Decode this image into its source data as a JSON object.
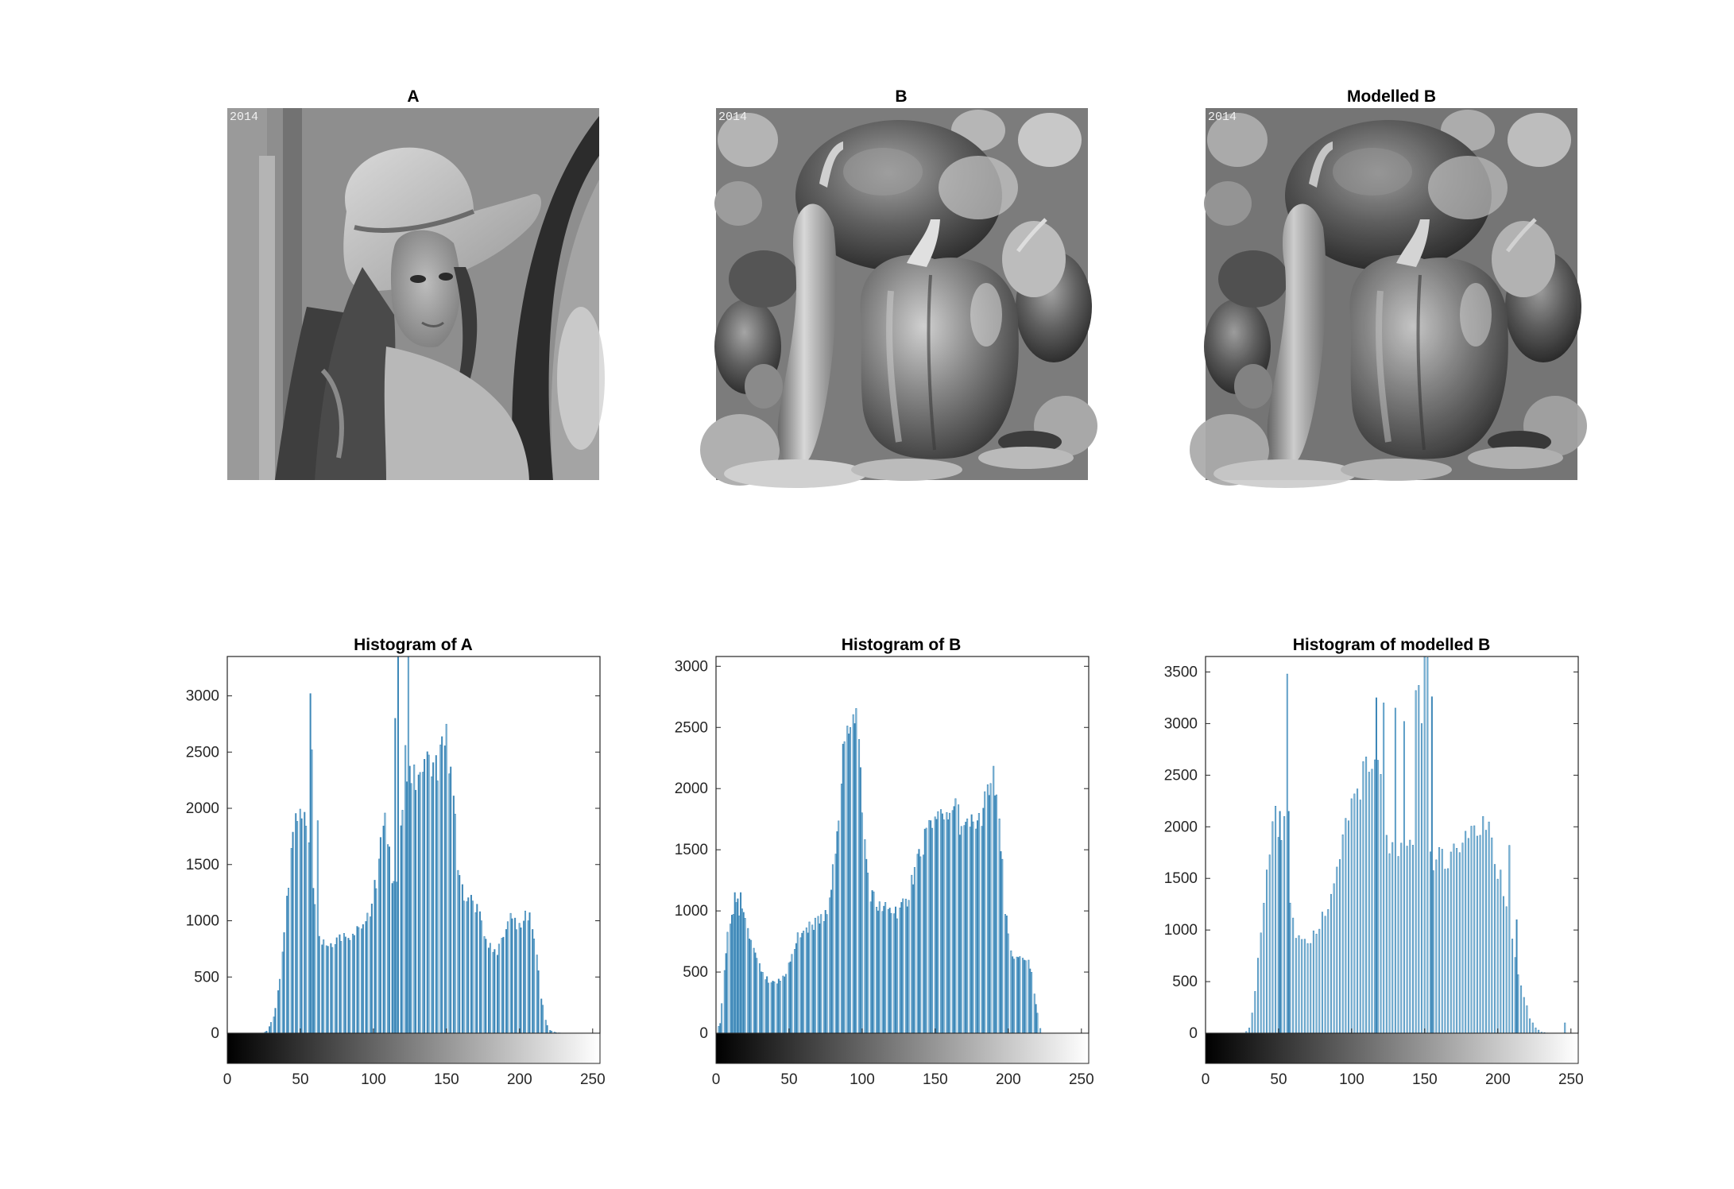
{
  "figure": {
    "panels": [
      {
        "id": "A",
        "title": "A",
        "stamp": "2014",
        "scene": "portrait"
      },
      {
        "id": "B",
        "title": "B",
        "stamp": "2014",
        "scene": "peppers"
      },
      {
        "id": "MB",
        "title": "Modelled B",
        "stamp": "2014",
        "scene": "peppers"
      }
    ]
  },
  "colors": {
    "bar": "#3f88b8",
    "bar_light": "#8cbfdc",
    "axis": "#262626"
  },
  "chart_data": [
    {
      "type": "bar",
      "title": "Histogram of A",
      "xlabel": "",
      "ylabel": "",
      "xlim": [
        0,
        255
      ],
      "ylim": [
        0,
        3350
      ],
      "xticks": [
        0,
        50,
        100,
        150,
        200,
        250
      ],
      "yticks": [
        0,
        500,
        1000,
        1500,
        2000,
        2500,
        3000
      ],
      "grid": false,
      "colorbar": "gray 0-255",
      "anchors": [
        [
          0,
          0
        ],
        [
          25,
          0
        ],
        [
          28,
          30
        ],
        [
          32,
          150
        ],
        [
          36,
          450
        ],
        [
          40,
          1000
        ],
        [
          44,
          1600
        ],
        [
          47,
          1950
        ],
        [
          50,
          2050
        ],
        [
          53,
          1950
        ],
        [
          56,
          1700
        ],
        [
          58,
          1500
        ],
        [
          60,
          1200
        ],
        [
          62,
          1000
        ],
        [
          64,
          850
        ],
        [
          68,
          790
        ],
        [
          72,
          800
        ],
        [
          76,
          850
        ],
        [
          80,
          860
        ],
        [
          85,
          880
        ],
        [
          90,
          900
        ],
        [
          95,
          960
        ],
        [
          100,
          1200
        ],
        [
          103,
          1450
        ],
        [
          106,
          1750
        ],
        [
          108,
          1900
        ],
        [
          110,
          1750
        ],
        [
          112,
          1500
        ],
        [
          114,
          1350
        ],
        [
          116,
          1350
        ],
        [
          118,
          1400
        ],
        [
          120,
          2050
        ],
        [
          122,
          2400
        ],
        [
          125,
          2300
        ],
        [
          128,
          2250
        ],
        [
          131,
          2200
        ],
        [
          134,
          2300
        ],
        [
          137,
          2400
        ],
        [
          140,
          2300
        ],
        [
          143,
          2350
        ],
        [
          146,
          2450
        ],
        [
          150,
          2600
        ],
        [
          152,
          2450
        ],
        [
          155,
          2000
        ],
        [
          158,
          1500
        ],
        [
          162,
          1250
        ],
        [
          166,
          1200
        ],
        [
          170,
          1150
        ],
        [
          174,
          1000
        ],
        [
          178,
          800
        ],
        [
          182,
          700
        ],
        [
          186,
          750
        ],
        [
          190,
          950
        ],
        [
          193,
          1000
        ],
        [
          196,
          1000
        ],
        [
          199,
          950
        ],
        [
          202,
          1000
        ],
        [
          205,
          1050
        ],
        [
          208,
          1000
        ],
        [
          211,
          800
        ],
        [
          214,
          400
        ],
        [
          217,
          150
        ],
        [
          220,
          30
        ],
        [
          225,
          5
        ],
        [
          230,
          0
        ],
        [
          255,
          0
        ]
      ],
      "spikes": [
        [
          57,
          3020
        ],
        [
          58,
          2520
        ],
        [
          62,
          1890
        ],
        [
          115,
          2800
        ],
        [
          117,
          3400
        ],
        [
          124,
          3400
        ]
      ],
      "gap_step": 3
    },
    {
      "type": "bar",
      "title": "Histogram of B",
      "xlabel": "",
      "ylabel": "",
      "xlim": [
        0,
        255
      ],
      "ylim": [
        0,
        3080
      ],
      "xticks": [
        0,
        50,
        100,
        150,
        200,
        250
      ],
      "yticks": [
        0,
        500,
        1000,
        1500,
        2000,
        2500,
        3000
      ],
      "grid": false,
      "colorbar": "gray 0-255",
      "anchors": [
        [
          0,
          0
        ],
        [
          3,
          80
        ],
        [
          5,
          400
        ],
        [
          8,
          800
        ],
        [
          11,
          950
        ],
        [
          14,
          1050
        ],
        [
          17,
          1000
        ],
        [
          20,
          900
        ],
        [
          24,
          750
        ],
        [
          28,
          600
        ],
        [
          32,
          480
        ],
        [
          36,
          420
        ],
        [
          40,
          400
        ],
        [
          44,
          430
        ],
        [
          48,
          500
        ],
        [
          52,
          620
        ],
        [
          56,
          780
        ],
        [
          60,
          850
        ],
        [
          65,
          880
        ],
        [
          70,
          900
        ],
        [
          75,
          950
        ],
        [
          78,
          1050
        ],
        [
          80,
          1300
        ],
        [
          83,
          1700
        ],
        [
          86,
          2100
        ],
        [
          89,
          2450
        ],
        [
          92,
          2600
        ],
        [
          94,
          2700
        ],
        [
          96,
          2600
        ],
        [
          98,
          2300
        ],
        [
          100,
          1900
        ],
        [
          103,
          1400
        ],
        [
          106,
          1150
        ],
        [
          110,
          1050
        ],
        [
          115,
          1020
        ],
        [
          120,
          1000
        ],
        [
          125,
          1000
        ],
        [
          130,
          1050
        ],
        [
          135,
          1300
        ],
        [
          140,
          1500
        ],
        [
          145,
          1650
        ],
        [
          150,
          1720
        ],
        [
          155,
          1800
        ],
        [
          160,
          1850
        ],
        [
          165,
          1800
        ],
        [
          170,
          1650
        ],
        [
          175,
          1700
        ],
        [
          180,
          1750
        ],
        [
          185,
          1900
        ],
        [
          188,
          2050
        ],
        [
          190,
          2100
        ],
        [
          192,
          1950
        ],
        [
          195,
          1500
        ],
        [
          198,
          1000
        ],
        [
          201,
          700
        ],
        [
          205,
          600
        ],
        [
          210,
          580
        ],
        [
          213,
          600
        ],
        [
          216,
          500
        ],
        [
          219,
          250
        ],
        [
          221,
          80
        ],
        [
          223,
          0
        ],
        [
          255,
          0
        ]
      ],
      "spikes": [
        [
          13,
          1150
        ],
        [
          17,
          1150
        ]
      ],
      "gap_step": 4
    },
    {
      "type": "bar",
      "title": "Histogram of modelled B",
      "xlabel": "",
      "ylabel": "",
      "xlim": [
        0,
        255
      ],
      "ylim": [
        0,
        3650
      ],
      "xticks": [
        0,
        50,
        100,
        150,
        200,
        250
      ],
      "yticks": [
        0,
        500,
        1000,
        1500,
        2000,
        2500,
        3000,
        3500
      ],
      "grid": false,
      "colorbar": "gray 0-255",
      "anchors": [
        [
          0,
          0
        ],
        [
          27,
          0
        ],
        [
          30,
          50
        ],
        [
          33,
          250
        ],
        [
          36,
          700
        ],
        [
          40,
          1300
        ],
        [
          44,
          1750
        ],
        [
          48,
          1900
        ],
        [
          52,
          1800
        ],
        [
          55,
          1600
        ],
        [
          58,
          1200
        ],
        [
          62,
          950
        ],
        [
          66,
          900
        ],
        [
          70,
          900
        ],
        [
          75,
          950
        ],
        [
          80,
          1100
        ],
        [
          85,
          1300
        ],
        [
          90,
          1600
        ],
        [
          95,
          1900
        ],
        [
          100,
          2150
        ],
        [
          105,
          2350
        ],
        [
          110,
          2550
        ],
        [
          115,
          2700
        ],
        [
          120,
          2400
        ],
        [
          125,
          1900
        ],
        [
          130,
          1700
        ],
        [
          135,
          1750
        ],
        [
          140,
          1800
        ],
        [
          145,
          1750
        ],
        [
          150,
          1700
        ],
        [
          155,
          1650
        ],
        [
          160,
          1650
        ],
        [
          165,
          1700
        ],
        [
          170,
          1750
        ],
        [
          175,
          1900
        ],
        [
          180,
          2000
        ],
        [
          185,
          2050
        ],
        [
          190,
          2050
        ],
        [
          195,
          1900
        ],
        [
          200,
          1600
        ],
        [
          205,
          1300
        ],
        [
          210,
          900
        ],
        [
          214,
          600
        ],
        [
          218,
          350
        ],
        [
          222,
          150
        ],
        [
          226,
          50
        ],
        [
          230,
          10
        ],
        [
          235,
          0
        ],
        [
          255,
          0
        ]
      ],
      "spikes": [
        [
          46,
          2050
        ],
        [
          48,
          2200
        ],
        [
          51,
          2150
        ],
        [
          54,
          2100
        ],
        [
          56,
          3480
        ],
        [
          57,
          2150
        ],
        [
          117,
          3250
        ],
        [
          122,
          3200
        ],
        [
          130,
          3150
        ],
        [
          136,
          3020
        ],
        [
          144,
          3320
        ],
        [
          146,
          3370
        ],
        [
          148,
          3000
        ],
        [
          150,
          3650
        ],
        [
          152,
          3640
        ],
        [
          155,
          3260
        ],
        [
          160,
          1800
        ],
        [
          190,
          2100
        ],
        [
          208,
          1820
        ],
        [
          213,
          1100
        ],
        [
          246,
          100
        ]
      ],
      "gap_step": 2
    }
  ]
}
